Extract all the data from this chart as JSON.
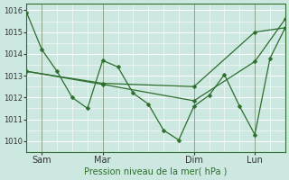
{
  "xlabel": "Pression niveau de la mer( hPa )",
  "ylim": [
    1009.5,
    1016.3
  ],
  "yticks": [
    1010,
    1011,
    1012,
    1013,
    1014,
    1015,
    1016
  ],
  "bg_color": "#cce8e0",
  "grid_color": "#ffffff",
  "line_color": "#2d6e2d",
  "xtick_labels": [
    "Sam",
    "Mar",
    "Dim",
    "Lun"
  ],
  "xtick_positions": [
    1,
    5,
    11,
    15
  ],
  "vline_positions": [
    1,
    5,
    11,
    15
  ],
  "xlim": [
    0,
    17
  ],
  "series1": {
    "x": [
      0,
      1,
      2,
      3,
      4,
      5,
      6,
      7,
      8,
      9,
      10,
      11,
      12,
      13,
      14,
      15,
      16,
      17
    ],
    "y": [
      1015.9,
      1014.2,
      1013.2,
      1012.0,
      1011.5,
      1013.7,
      1013.4,
      1012.2,
      1011.7,
      1010.5,
      1010.05,
      1011.6,
      1012.1,
      1013.05,
      1011.6,
      1010.3,
      1013.8,
      1015.2
    ]
  },
  "series2": {
    "x": [
      0,
      5,
      11,
      15,
      17
    ],
    "y": [
      1013.2,
      1012.65,
      1012.5,
      1015.0,
      1015.2
    ]
  },
  "series3": {
    "x": [
      0,
      5,
      11,
      15,
      17
    ],
    "y": [
      1013.2,
      1012.6,
      1011.85,
      1013.65,
      1015.6
    ]
  },
  "vline_color": "#446644",
  "ylabel_fontsize": 6,
  "xlabel_fontsize": 7,
  "xtick_fontsize": 7,
  "marker_size": 2.5
}
